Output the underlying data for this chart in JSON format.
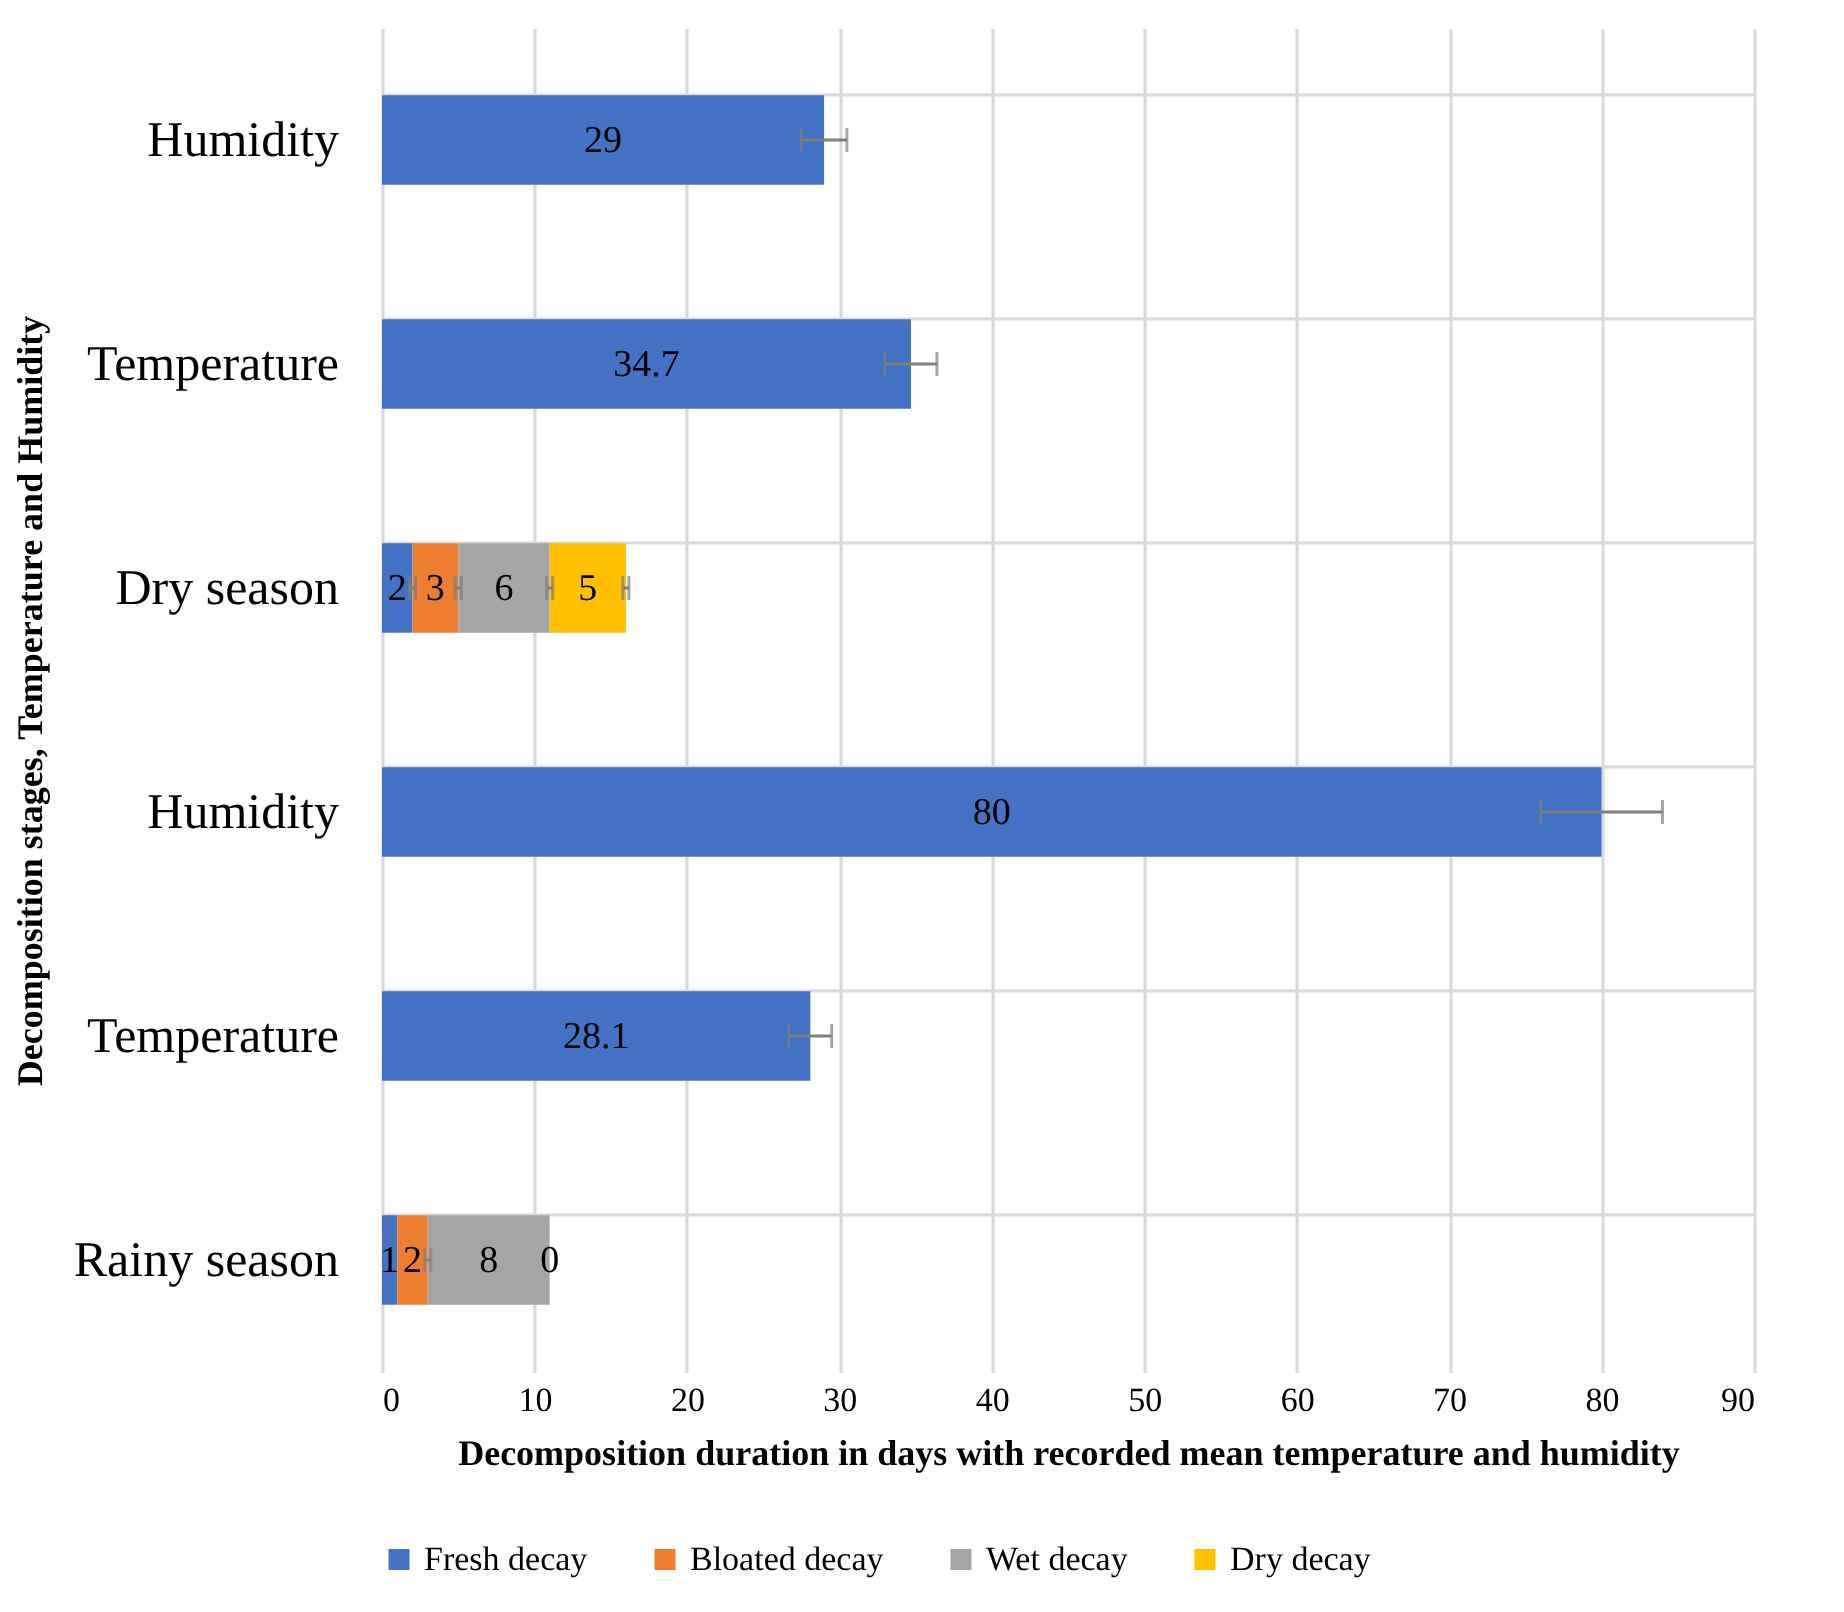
{
  "chart_data": {
    "type": "bar",
    "orientation": "horizontal",
    "stacked": true,
    "xlabel": "Decomposition duration in days with recorded mean temperature and humidity",
    "ylabel": "Decomposition stages, Temperature and Humidity",
    "categories": [
      "Humidity",
      "Temperature",
      "Dry season",
      "Humidity",
      "Temperature",
      "Rainy season"
    ],
    "series": [
      {
        "name": "Fresh decay",
        "color": "#4472c4",
        "values": [
          29,
          34.7,
          2,
          80,
          28.1,
          1
        ],
        "errors": [
          1.5,
          1.7,
          0.2,
          4,
          1.4,
          null
        ]
      },
      {
        "name": "Bloated decay",
        "color": "#ed7d31",
        "values": [
          null,
          null,
          3,
          null,
          null,
          2
        ],
        "errors": [
          null,
          null,
          0.2,
          null,
          null,
          0.2
        ]
      },
      {
        "name": "Wet decay",
        "color": "#a5a5a5",
        "values": [
          null,
          null,
          6,
          null,
          null,
          8
        ],
        "errors": [
          null,
          null,
          0.2,
          null,
          null,
          null
        ]
      },
      {
        "name": "Dry decay",
        "color": "#ffc000",
        "values": [
          null,
          null,
          5,
          null,
          null,
          0
        ],
        "errors": [
          null,
          null,
          0.2,
          null,
          null,
          null
        ]
      }
    ],
    "xlim": [
      0,
      90
    ],
    "xticks": [
      0,
      10,
      20,
      30,
      40,
      50,
      60,
      70,
      80,
      90
    ],
    "data_labels": true,
    "grid": true,
    "legend": "bottom"
  }
}
